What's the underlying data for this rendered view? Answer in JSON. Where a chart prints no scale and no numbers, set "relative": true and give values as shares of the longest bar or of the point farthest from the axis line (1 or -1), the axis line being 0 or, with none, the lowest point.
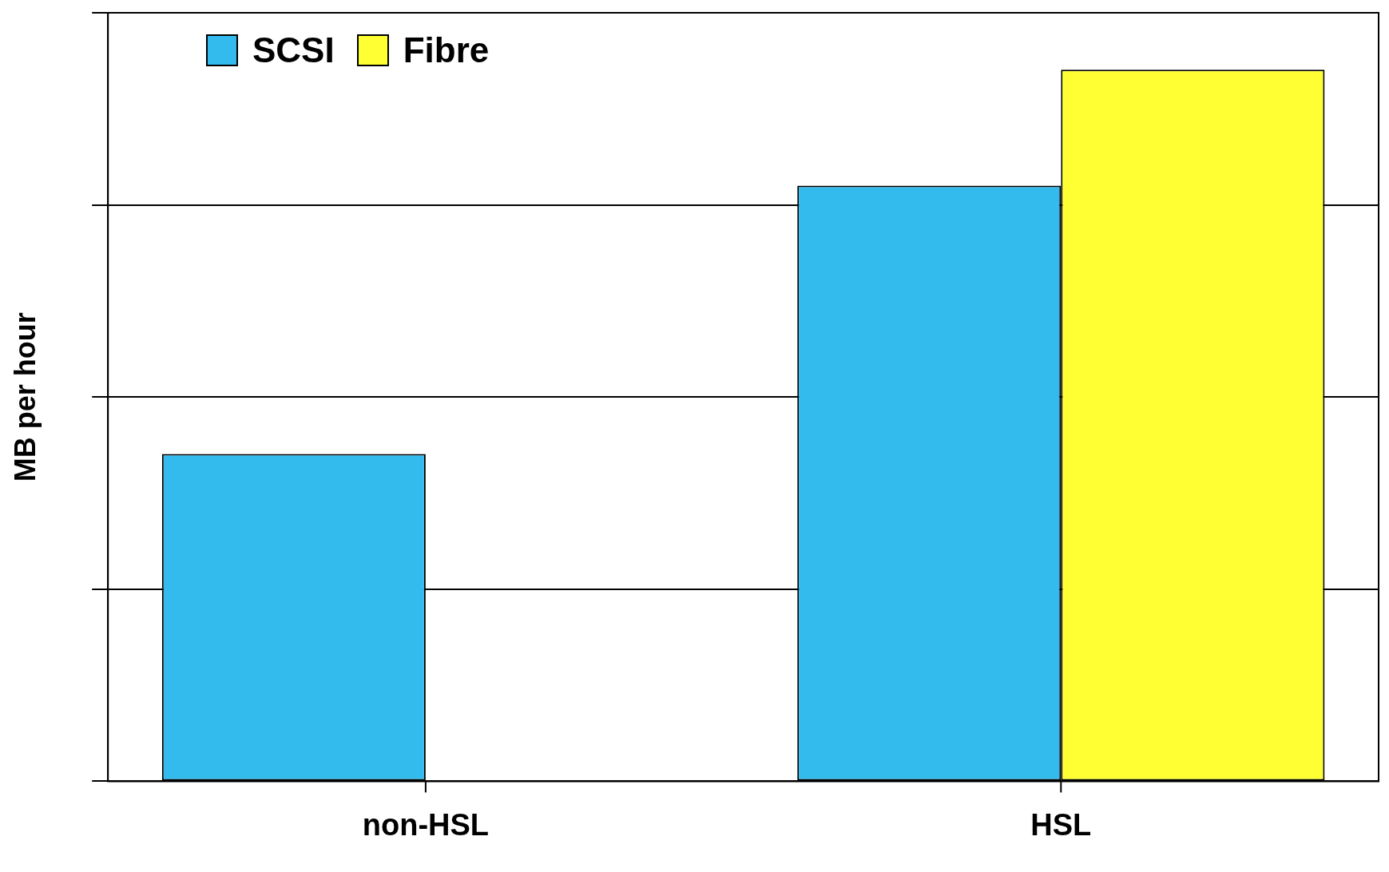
{
  "chart_data": {
    "type": "bar",
    "relative": true,
    "ylabel": "MB per hour",
    "categories": [
      "non-HSL",
      "HSL"
    ],
    "series": [
      {
        "name": "SCSI",
        "color": "#33bbee",
        "values": [
          0.46,
          0.837
        ]
      },
      {
        "name": "Fibre",
        "color": "#ffff33",
        "values": [
          null,
          1
        ]
      }
    ],
    "grid": "y",
    "legend": "top left"
  }
}
